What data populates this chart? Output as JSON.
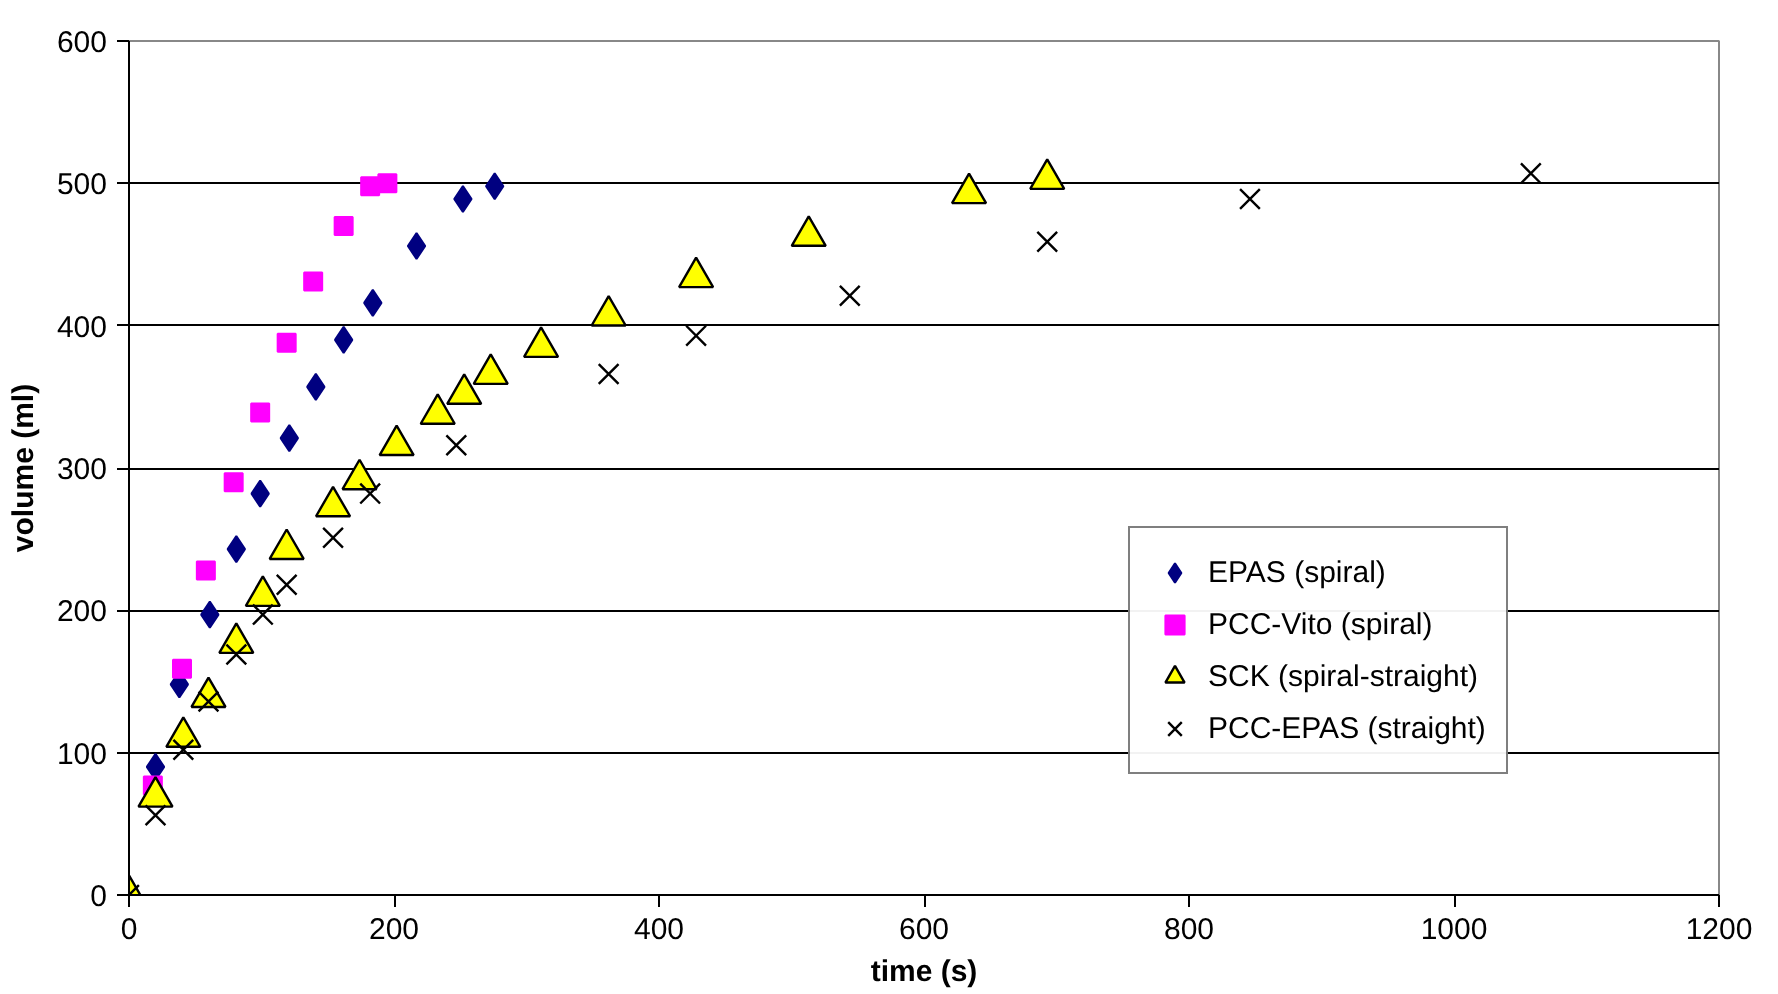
{
  "chart_data": {
    "type": "scatter",
    "xlabel": "time (s)",
    "ylabel": "volume (ml)",
    "xlim": [
      0,
      1200
    ],
    "ylim": [
      0,
      600
    ],
    "xticks": [
      0,
      200,
      400,
      600,
      800,
      1000,
      1200
    ],
    "yticks": [
      0,
      100,
      200,
      300,
      400,
      500,
      600
    ],
    "grid": "y",
    "legend": "right",
    "series": [
      {
        "name": "EPAS (spiral)",
        "color": "#000080",
        "marker": "diamond",
        "x": [
          20,
          38,
          61,
          81,
          99,
          121,
          141,
          162,
          184,
          217,
          252,
          276
        ],
        "values": [
          90,
          148,
          197,
          243,
          282,
          321,
          357,
          390,
          416,
          456,
          489,
          498
        ]
      },
      {
        "name": "PCC-Vito (spiral)",
        "color": "#ff00ff",
        "marker": "square",
        "x": [
          18,
          40,
          58,
          79,
          99,
          119,
          139,
          162,
          182,
          195
        ],
        "values": [
          77,
          159,
          228,
          290,
          339,
          388,
          431,
          470,
          498,
          500
        ]
      },
      {
        "name": "SCK (spiral-straight)",
        "color": "#ffff00",
        "marker": "triangle",
        "x": [
          0,
          20,
          41,
          60,
          81,
          101,
          119,
          154,
          174,
          202,
          233,
          253,
          273,
          311,
          362,
          428,
          513,
          634,
          693
        ],
        "values": [
          0,
          69,
          111,
          139,
          177,
          210,
          243,
          273,
          292,
          316,
          338,
          352,
          366,
          385,
          407,
          434,
          463,
          493,
          503
        ]
      },
      {
        "name": "PCC-EPAS (straight)",
        "color": "#000000",
        "marker": "cross",
        "x": [
          0,
          20,
          41,
          60,
          81,
          101,
          119,
          154,
          182,
          247,
          362,
          428,
          544,
          693,
          846,
          1058
        ],
        "values": [
          0,
          56,
          102,
          136,
          169,
          197,
          218,
          251,
          282,
          316,
          366,
          393,
          421,
          459,
          489,
          507
        ]
      }
    ]
  }
}
